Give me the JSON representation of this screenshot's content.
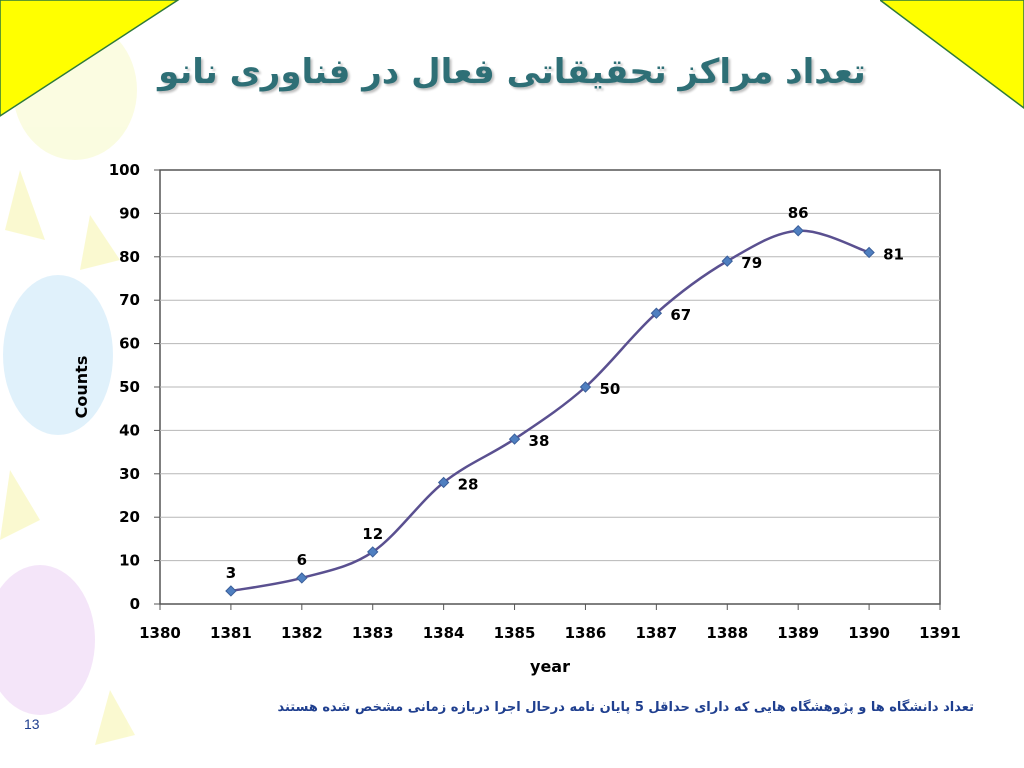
{
  "slide": {
    "title": "تعداد مراکز تحقیقاتی فعال در فناوری نانو",
    "caption": "تعداد دانشگاه ها و پژوهشگاه هایی که دارای حداقل 5 پایان نامه درحال اجرا دربازه زمانی مشخص شده هستند",
    "page_number": "13",
    "corner_color": "#ffff00",
    "title_color": "#2e6f76",
    "caption_color": "#1f3f8f"
  },
  "chart_data": {
    "type": "line",
    "title": "",
    "xlabel": "year",
    "ylabel": "Counts",
    "x": [
      1381,
      1382,
      1383,
      1384,
      1385,
      1386,
      1387,
      1388,
      1389,
      1390
    ],
    "series": [
      {
        "values": [
          3,
          6,
          12,
          28,
          38,
          50,
          67,
          79,
          86,
          81
        ],
        "color": "#5a5090",
        "marker_color": "#4f7fc0"
      }
    ],
    "xlim": [
      1380,
      1391
    ],
    "ylim": [
      0,
      100
    ],
    "xticks": [
      1380,
      1381,
      1382,
      1383,
      1384,
      1385,
      1386,
      1387,
      1388,
      1389,
      1390,
      1391
    ],
    "yticks": [
      0,
      10,
      20,
      30,
      40,
      50,
      60,
      70,
      80,
      90,
      100
    ],
    "grid": true,
    "smooth": true,
    "data_labels": true
  }
}
